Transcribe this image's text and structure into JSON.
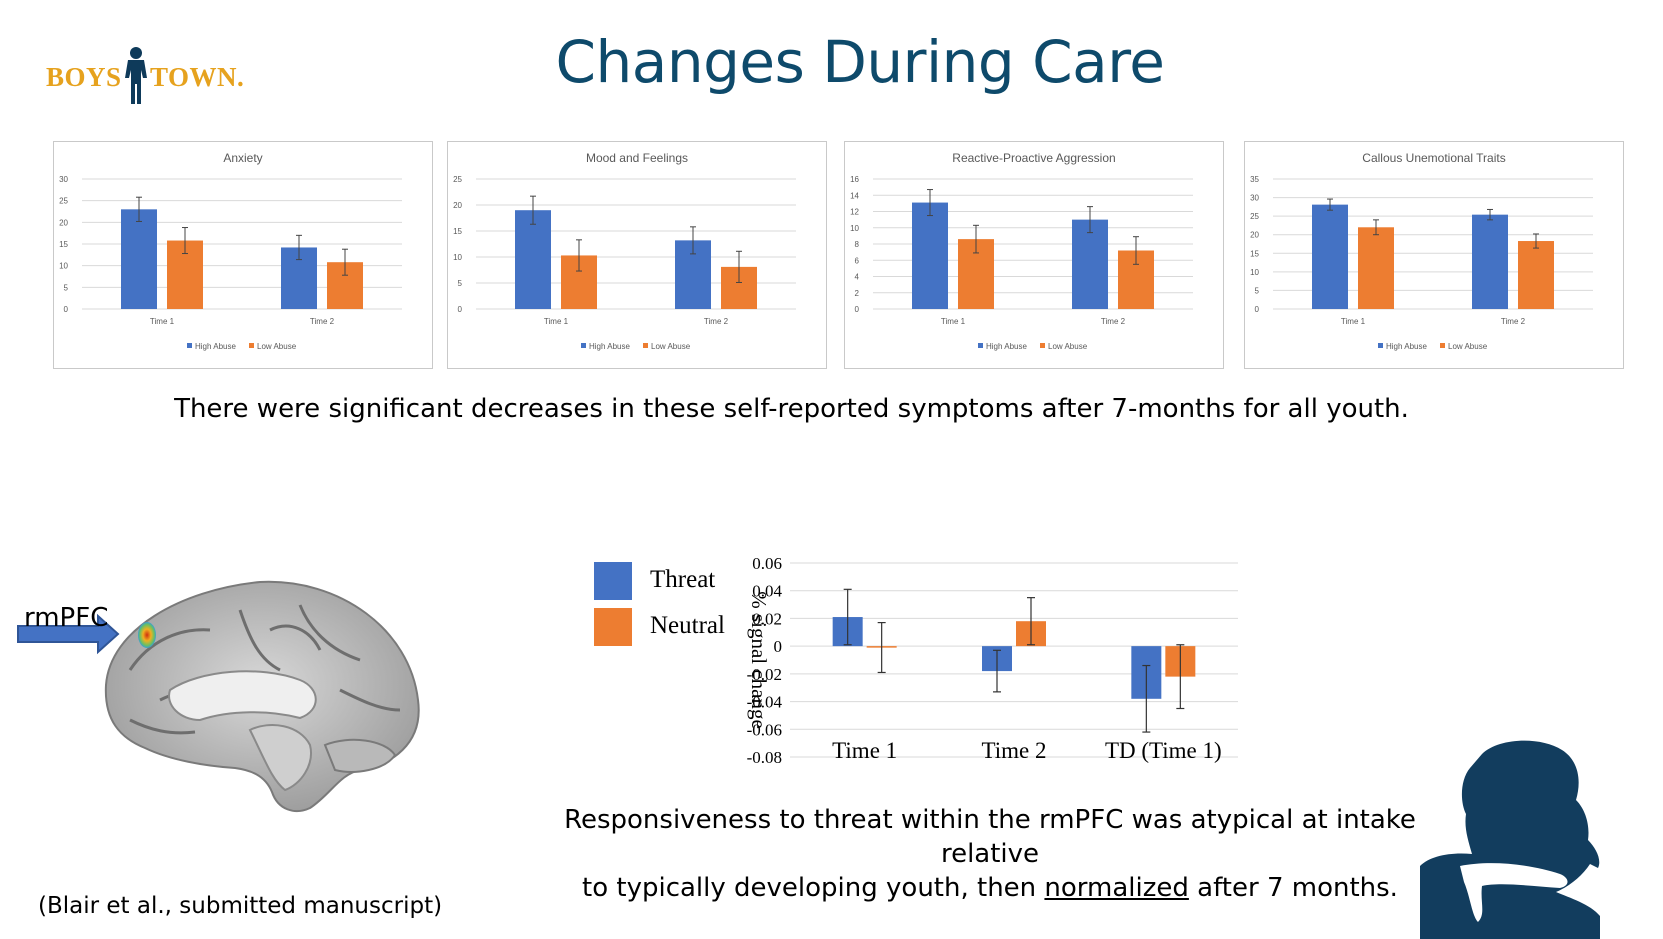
{
  "logo": {
    "left": "BOYS",
    "right": "TOWN."
  },
  "title": "Changes During Care",
  "caption_top": "There were significant decreases in these self-reported symptoms after 7-months for all youth.",
  "brain_label": "rmPFC",
  "caption_bottom": {
    "line1": "Responsiveness to threat within the rmPFC was atypical at intake relative",
    "line2_pre": "to typically developing youth, then ",
    "line2_underlined": "normalized",
    "line2_post": " after 7 months."
  },
  "citation": "(Blair et al., submitted manuscript)",
  "colors": {
    "blue": "#4472C4",
    "orange": "#ED7D31",
    "navy": "#0E4A6B",
    "gold": "#E6A21E"
  },
  "chart_data": [
    {
      "type": "bar",
      "title": "Anxiety",
      "categories": [
        "Time 1",
        "Time 2"
      ],
      "series": [
        {
          "name": "High Abuse",
          "values": [
            23,
            14.2
          ],
          "errors": [
            2.8,
            2.8
          ]
        },
        {
          "name": "Low Abuse",
          "values": [
            15.8,
            10.8
          ],
          "errors": [
            3.0,
            3.0
          ]
        }
      ],
      "ylim": [
        0,
        30
      ],
      "yticks": [
        0,
        5,
        10,
        15,
        20,
        25,
        30
      ],
      "grid": true,
      "legend": "bottom"
    },
    {
      "type": "bar",
      "title": "Mood and Feelings",
      "categories": [
        "Time 1",
        "Time 2"
      ],
      "series": [
        {
          "name": "High Abuse",
          "values": [
            19,
            13.2
          ],
          "errors": [
            2.7,
            2.6
          ]
        },
        {
          "name": "Low Abuse",
          "values": [
            10.3,
            8.1
          ],
          "errors": [
            3.0,
            3.0
          ]
        }
      ],
      "ylim": [
        0,
        25
      ],
      "yticks": [
        0,
        5,
        10,
        15,
        20,
        25
      ],
      "grid": true,
      "legend": "bottom"
    },
    {
      "type": "bar",
      "title": "Reactive-Proactive Aggression",
      "categories": [
        "Time 1",
        "Time 2"
      ],
      "series": [
        {
          "name": "High Abuse",
          "values": [
            13.1,
            11
          ],
          "errors": [
            1.6,
            1.6
          ]
        },
        {
          "name": "Low Abuse",
          "values": [
            8.6,
            7.2
          ],
          "errors": [
            1.7,
            1.7
          ]
        }
      ],
      "ylim": [
        0,
        16
      ],
      "yticks": [
        0,
        2,
        4,
        6,
        8,
        10,
        12,
        14,
        16
      ],
      "grid": true,
      "legend": "bottom"
    },
    {
      "type": "bar",
      "title": "Callous Unemotional Traits",
      "categories": [
        "Time 1",
        "Time 2"
      ],
      "series": [
        {
          "name": "High Abuse",
          "values": [
            28.1,
            25.4
          ],
          "errors": [
            1.5,
            1.4
          ]
        },
        {
          "name": "Low Abuse",
          "values": [
            22,
            18.3
          ],
          "errors": [
            2.0,
            1.9
          ]
        }
      ],
      "ylim": [
        0,
        35
      ],
      "yticks": [
        0,
        5,
        10,
        15,
        20,
        25,
        30,
        35
      ],
      "grid": true,
      "legend": "bottom"
    },
    {
      "type": "bar",
      "title": "",
      "categories": [
        "Time 1",
        "Time 2",
        "TD (Time 1)"
      ],
      "series": [
        {
          "name": "Threat",
          "values": [
            0.021,
            -0.018,
            -0.038
          ],
          "errors": [
            0.02,
            0.015,
            0.024
          ]
        },
        {
          "name": "Neutral",
          "values": [
            -0.001,
            0.018,
            -0.022
          ],
          "errors": [
            0.018,
            0.017,
            0.023
          ]
        }
      ],
      "ylabel": "% signal change",
      "ylim": [
        -0.08,
        0.06
      ],
      "yticks": [
        "0.06",
        "0.04",
        "0.02",
        "0",
        "-0.02",
        "-0.04",
        "-0.06",
        "-0.08"
      ],
      "grid": true,
      "legend": "left"
    }
  ]
}
